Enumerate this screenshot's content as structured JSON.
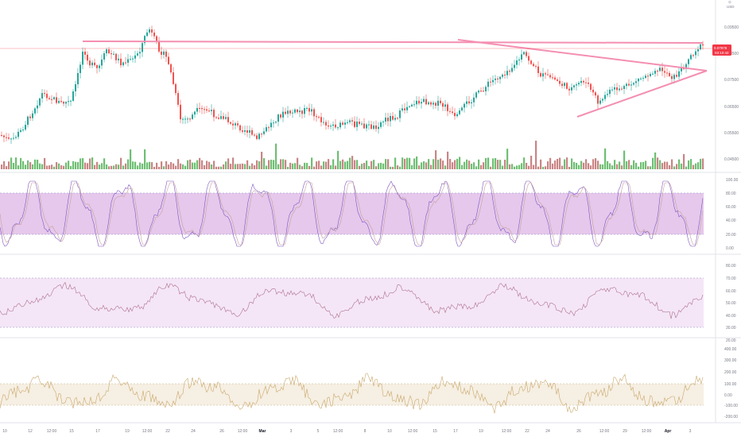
{
  "app": {
    "currency_label": "USD"
  },
  "price_pane": {
    "axis_ticks": [
      "0.09500",
      "0.08500",
      "0.07500",
      "0.06500",
      "0.05500",
      "0.04500"
    ],
    "current_price": "0.07978",
    "price_tag": "0.07978",
    "price_tag_sub": "03:10:42"
  },
  "stoch_pane": {
    "axis_ticks": [
      "100.00",
      "80.00",
      "60.00",
      "40.00",
      "20.00",
      "0.00"
    ],
    "upper_band": 80,
    "lower_band": 20
  },
  "rsi_pane": {
    "axis_ticks": [
      "80.00",
      "70.00",
      "60.00",
      "50.00",
      "40.00",
      "30.00",
      "20.00"
    ],
    "upper_band": 70,
    "lower_band": 30
  },
  "cci_pane": {
    "axis_ticks": [
      "400.00",
      "300.00",
      "200.00",
      "100.00",
      "0.00",
      "-100.00",
      "-200.00"
    ],
    "upper_band": 100,
    "lower_band": -100
  },
  "time_axis": [
    {
      "label": "10",
      "bold": false
    },
    {
      "label": "12",
      "bold": false
    },
    {
      "label": "12:00",
      "bold": false
    },
    {
      "label": "15",
      "bold": false
    },
    {
      "label": "17",
      "bold": false
    },
    {
      "label": "19",
      "bold": false
    },
    {
      "label": "12:00",
      "bold": false
    },
    {
      "label": "22",
      "bold": false
    },
    {
      "label": "24",
      "bold": false
    },
    {
      "label": "26",
      "bold": false
    },
    {
      "label": "12:00",
      "bold": false
    },
    {
      "label": "Mar",
      "bold": true
    },
    {
      "label": "3",
      "bold": false
    },
    {
      "label": "5",
      "bold": false
    },
    {
      "label": "12:00",
      "bold": false
    },
    {
      "label": "8",
      "bold": false
    },
    {
      "label": "10",
      "bold": false
    },
    {
      "label": "12:00",
      "bold": false
    },
    {
      "label": "15",
      "bold": false
    },
    {
      "label": "17",
      "bold": false
    },
    {
      "label": "19",
      "bold": false
    },
    {
      "label": "12:00",
      "bold": false
    },
    {
      "label": "22",
      "bold": false
    },
    {
      "label": "24",
      "bold": false
    },
    {
      "label": "26",
      "bold": false
    },
    {
      "label": "12:00",
      "bold": false
    },
    {
      "label": "29",
      "bold": false
    },
    {
      "label": "12:00",
      "bold": false
    },
    {
      "label": "Apr",
      "bold": true
    },
    {
      "label": "3",
      "bold": false
    }
  ],
  "colors": {
    "up": "#26a69a",
    "down": "#ef5350",
    "vol_up": "#6fbf73",
    "vol_down": "#c98585",
    "trendline": "#f48fb1",
    "stoch_fill": "#e1bee7",
    "rsi_fill": "#f3e5f5",
    "cci_fill": "#f5eee1",
    "price_tag": "#f23645"
  }
}
